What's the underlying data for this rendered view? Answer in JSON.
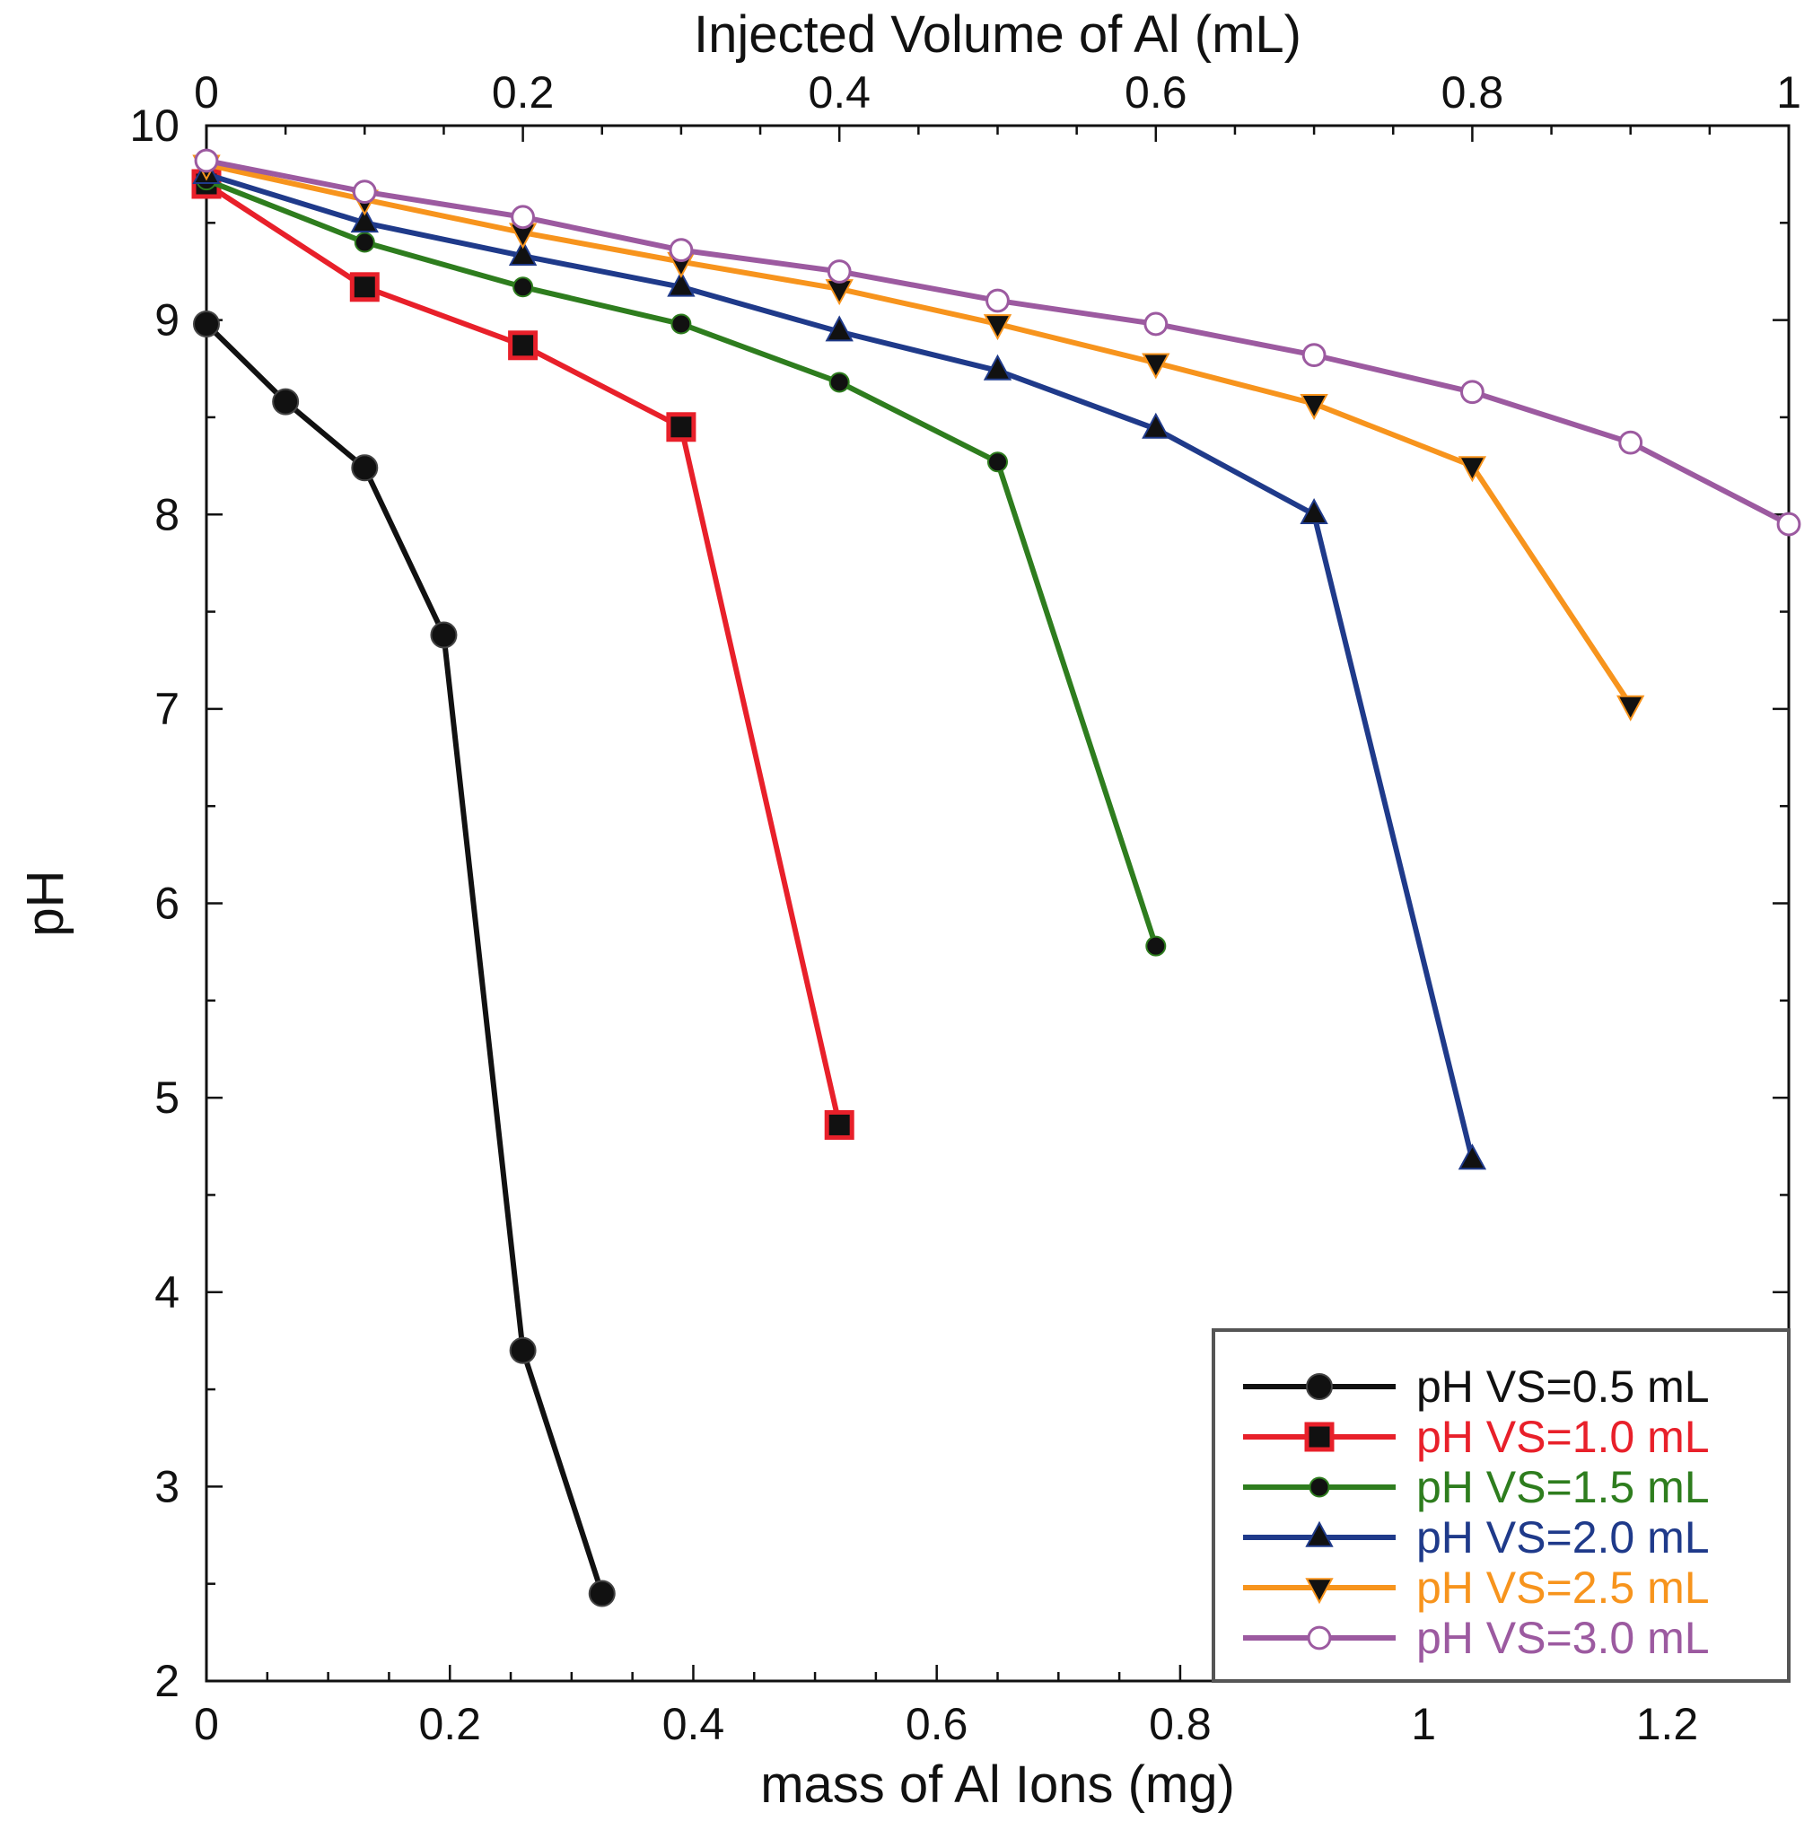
{
  "chart_data": {
    "type": "line",
    "title": "",
    "xlabel": "mass of Al Ions (mg)",
    "x2label": "Injected Volume of Al (mL)",
    "ylabel": "pH",
    "xlim": [
      0,
      1.3
    ],
    "x2lim": [
      0,
      1
    ],
    "ylim": [
      2,
      10
    ],
    "xticks": [
      "0",
      "0.2",
      "0.4",
      "0.6",
      "0.8",
      "1",
      "1.2"
    ],
    "x2ticks": [
      "0",
      "0.2",
      "0.4",
      "0.6",
      "0.8",
      "1"
    ],
    "yticks": [
      "2",
      "3",
      "4",
      "5",
      "6",
      "7",
      "8",
      "9",
      "10"
    ],
    "grid": false,
    "legend_position": "bottom-right",
    "series": [
      {
        "name": "pH VS=0.5 mL",
        "color": "#111111",
        "marker": "circle-filled",
        "x": [
          0,
          0.065,
          0.13,
          0.195,
          0.26,
          0.325
        ],
        "y": [
          8.98,
          8.58,
          8.24,
          7.38,
          3.7,
          2.45
        ]
      },
      {
        "name": "pH VS=1.0 mL",
        "color": "#e8202a",
        "marker": "square-filled",
        "x": [
          0,
          0.13,
          0.26,
          0.39,
          0.52
        ],
        "y": [
          9.7,
          9.17,
          8.87,
          8.45,
          4.86
        ]
      },
      {
        "name": "pH VS=1.5 mL",
        "color": "#2e7d1e",
        "marker": "diamond-filled",
        "x": [
          0,
          0.13,
          0.26,
          0.39,
          0.52,
          0.65,
          0.78
        ],
        "y": [
          9.72,
          9.4,
          9.17,
          8.98,
          8.68,
          8.27,
          5.78
        ]
      },
      {
        "name": "pH VS=2.0 mL",
        "color": "#1f3a8a",
        "marker": "triangle-up-filled",
        "x": [
          0,
          0.13,
          0.26,
          0.39,
          0.52,
          0.65,
          0.78,
          0.91,
          1.04
        ],
        "y": [
          9.75,
          9.5,
          9.33,
          9.17,
          8.94,
          8.74,
          8.44,
          8.0,
          4.68
        ]
      },
      {
        "name": "pH VS=2.5 mL",
        "color": "#f7941d",
        "marker": "triangle-down-filled",
        "x": [
          0,
          0.13,
          0.26,
          0.39,
          0.52,
          0.65,
          0.78,
          0.91,
          1.04,
          1.17
        ],
        "y": [
          9.8,
          9.62,
          9.45,
          9.3,
          9.16,
          8.98,
          8.78,
          8.57,
          8.25,
          7.02
        ]
      },
      {
        "name": "pH VS=3.0 mL",
        "color": "#9c5aa0",
        "marker": "circle-open",
        "x": [
          0,
          0.13,
          0.26,
          0.39,
          0.52,
          0.65,
          0.78,
          0.91,
          1.04,
          1.17,
          1.3
        ],
        "y": [
          9.82,
          9.66,
          9.53,
          9.36,
          9.25,
          9.1,
          8.98,
          8.82,
          8.63,
          8.37,
          7.95
        ]
      }
    ]
  }
}
